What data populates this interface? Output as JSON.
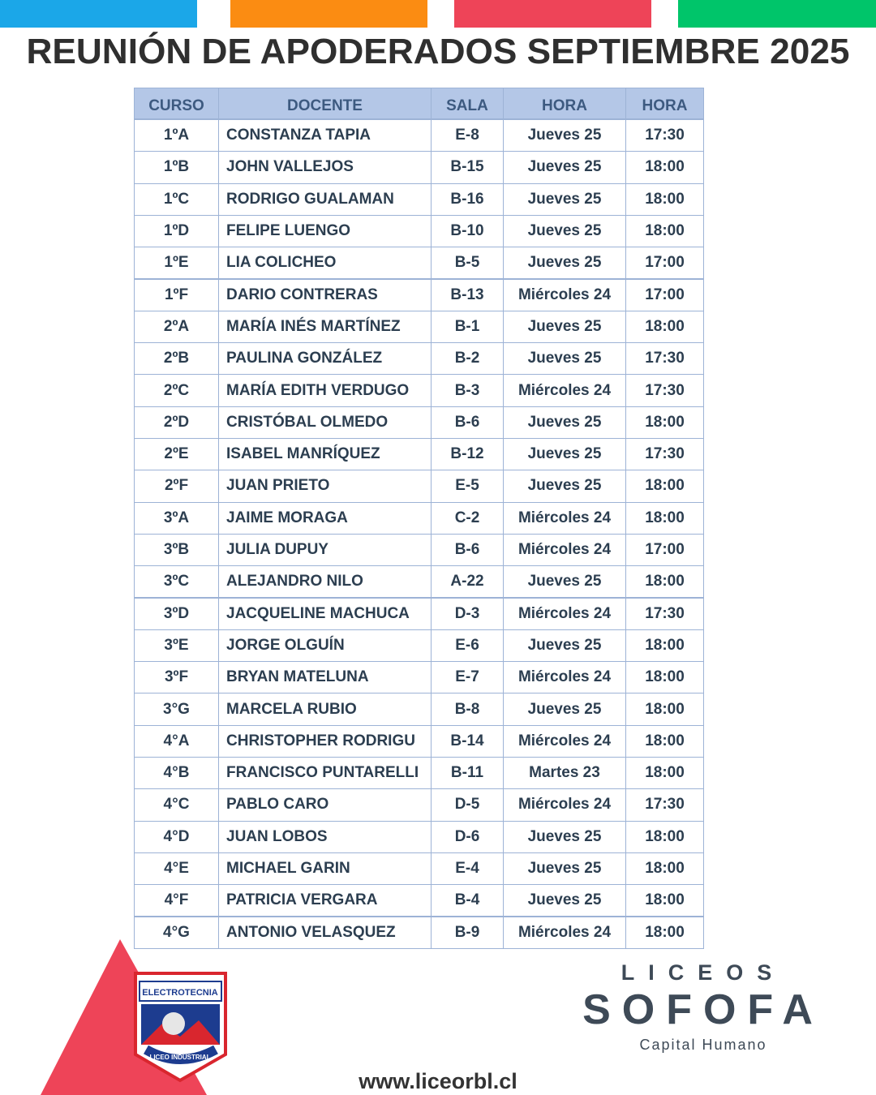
{
  "header": {
    "title": "REUNIÓN DE APODERADOS SEPTIEMBRE 2025"
  },
  "table": {
    "columns": [
      "CURSO",
      "DOCENTE",
      "SALA",
      "HORA",
      "HORA"
    ],
    "rows": [
      [
        "1ºA",
        "CONSTANZA TAPIA",
        "E-8",
        "Jueves 25",
        "17:30"
      ],
      [
        "1ºB",
        "JOHN VALLEJOS",
        "B-15",
        "Jueves 25",
        "18:00"
      ],
      [
        "1ºC",
        "RODRIGO GUALAMAN",
        "B-16",
        "Jueves 25",
        "18:00"
      ],
      [
        "1ºD",
        "FELIPE LUENGO",
        "B-10",
        "Jueves 25",
        "18:00"
      ],
      [
        "1ºE",
        "LIA COLICHEO",
        "B-5",
        "Jueves 25",
        "17:00"
      ],
      [
        "1ºF",
        "DARIO CONTRERAS",
        "B-13",
        "Miércoles 24",
        "17:00"
      ],
      [
        "2ºA",
        "MARÍA INÉS MARTÍNEZ",
        "B-1",
        "Jueves 25",
        "18:00"
      ],
      [
        "2ºB",
        "PAULINA GONZÁLEZ",
        "B-2",
        "Jueves 25",
        "17:30"
      ],
      [
        "2ºC",
        "MARÍA EDITH VERDUGO",
        "B-3",
        "Miércoles 24",
        "17:30"
      ],
      [
        "2ºD",
        "CRISTÓBAL OLMEDO",
        "B-6",
        "Jueves 25",
        "18:00"
      ],
      [
        "2ºE",
        "ISABEL MANRÍQUEZ",
        "B-12",
        "Jueves 25",
        "17:30"
      ],
      [
        "2ºF",
        "JUAN PRIETO",
        "E-5",
        "Jueves 25",
        "18:00"
      ],
      [
        "3ºA",
        "JAIME MORAGA",
        "C-2",
        "Miércoles 24",
        "18:00"
      ],
      [
        "3ºB",
        "JULIA DUPUY",
        "B-6",
        "Miércoles 24",
        "17:00"
      ],
      [
        "3ºC",
        "ALEJANDRO NILO",
        "A-22",
        "Jueves 25",
        "18:00"
      ],
      [
        "3ºD",
        "JACQUELINE MACHUCA",
        "D-3",
        "Miércoles 24",
        "17:30"
      ],
      [
        "3ºE",
        "JORGE OLGUÍN",
        "E-6",
        "Jueves 25",
        "18:00"
      ],
      [
        "3ºF",
        "BRYAN MATELUNA",
        "E-7",
        "Miércoles 24",
        "18:00"
      ],
      [
        "3°G",
        "MARCELA RUBIO",
        "B-8",
        "Jueves 25",
        "18:00"
      ],
      [
        "4°A",
        "CHRISTOPHER RODRIGU",
        "B-14",
        "Miércoles 24",
        "18:00"
      ],
      [
        "4°B",
        "FRANCISCO PUNTARELLI",
        "B-11",
        "Martes 23",
        "18:00"
      ],
      [
        "4°C",
        "PABLO CARO",
        "D-5",
        "Miércoles 24",
        "17:30"
      ],
      [
        "4°D",
        "JUAN LOBOS",
        "D-6",
        "Jueves 25",
        "18:00"
      ],
      [
        "4°E",
        "MICHAEL GARIN",
        "E-4",
        "Jueves 25",
        "18:00"
      ],
      [
        "4°F",
        "PATRICIA VERGARA",
        "B-4",
        "Jueves 25",
        "18:00"
      ],
      [
        "4°G",
        "ANTONIO VELASQUEZ",
        "B-9",
        "Miércoles 24",
        "18:00"
      ]
    ]
  },
  "logos": {
    "school_top": "ELECTROTECNIA",
    "school_bottom": "LICEO INDUSTRIAL",
    "brand_top": "LICEOS",
    "brand_name": "SOFOFA",
    "brand_sub": "Capital Humano"
  },
  "footer": {
    "website": "www.liceorbl.cl"
  }
}
